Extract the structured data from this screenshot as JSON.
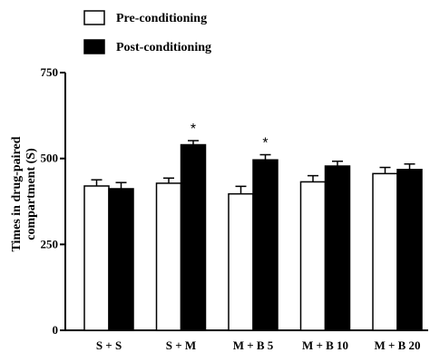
{
  "chart_data": {
    "type": "bar",
    "categories": [
      "S + S",
      "S + M",
      "M + B 5",
      "M + B 10",
      "M + B 20"
    ],
    "series": [
      {
        "name": "Pre-conditioning",
        "values": [
          420,
          428,
          397,
          432,
          456
        ],
        "errors": [
          18,
          15,
          22,
          18,
          18
        ],
        "color": "#ffffff"
      },
      {
        "name": "Post-conditioning",
        "values": [
          412,
          540,
          496,
          478,
          468
        ],
        "errors": [
          18,
          12,
          15,
          14,
          16
        ],
        "color": "#000000"
      }
    ],
    "significance": [
      "",
      "*",
      "*",
      "",
      ""
    ],
    "significance_series": "Post-conditioning",
    "ylabel_lines": [
      "Times in drug-paired",
      "compartment (S)"
    ],
    "yticks": [
      0,
      250,
      500,
      750
    ],
    "ylim": [
      0,
      750
    ],
    "legend_position": "top-left"
  }
}
